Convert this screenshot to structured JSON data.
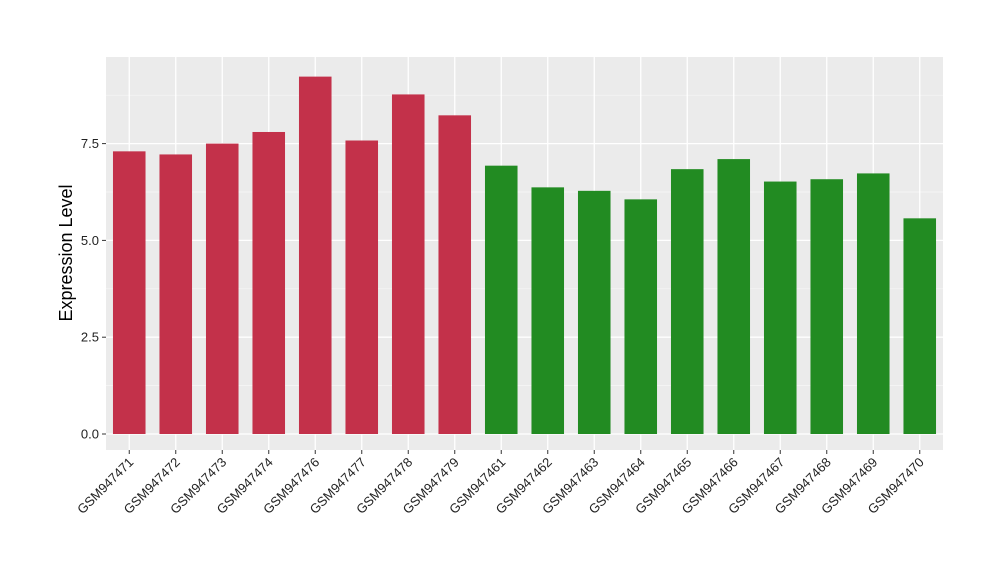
{
  "chart_data": {
    "type": "bar",
    "title": "",
    "xlabel": "",
    "ylabel": "Expression Level",
    "ylim": [
      -0.3,
      9.4
    ],
    "yticks": [
      0.0,
      2.5,
      5.0,
      7.5
    ],
    "ytick_labels": [
      "0.0",
      "2.5",
      "5.0",
      "7.5"
    ],
    "grid": true,
    "background": "#ebebeb",
    "categories": [
      "GSM947471",
      "GSM947472",
      "GSM947473",
      "GSM947474",
      "GSM947476",
      "GSM947477",
      "GSM947478",
      "GSM947479",
      "GSM947461",
      "GSM947462",
      "GSM947463",
      "GSM947464",
      "GSM947465",
      "GSM947466",
      "GSM947467",
      "GSM947468",
      "GSM947469",
      "GSM947470"
    ],
    "values": [
      7.3,
      7.22,
      7.5,
      7.8,
      9.23,
      7.58,
      8.77,
      8.23,
      6.93,
      6.37,
      6.28,
      6.06,
      6.84,
      7.1,
      6.52,
      6.58,
      6.73,
      5.57
    ],
    "colors": [
      "#c3314a",
      "#c3314a",
      "#c3314a",
      "#c3314a",
      "#c3314a",
      "#c3314a",
      "#c3314a",
      "#c3314a",
      "#228b22",
      "#228b22",
      "#228b22",
      "#228b22",
      "#228b22",
      "#228b22",
      "#228b22",
      "#228b22",
      "#228b22",
      "#228b22"
    ]
  }
}
